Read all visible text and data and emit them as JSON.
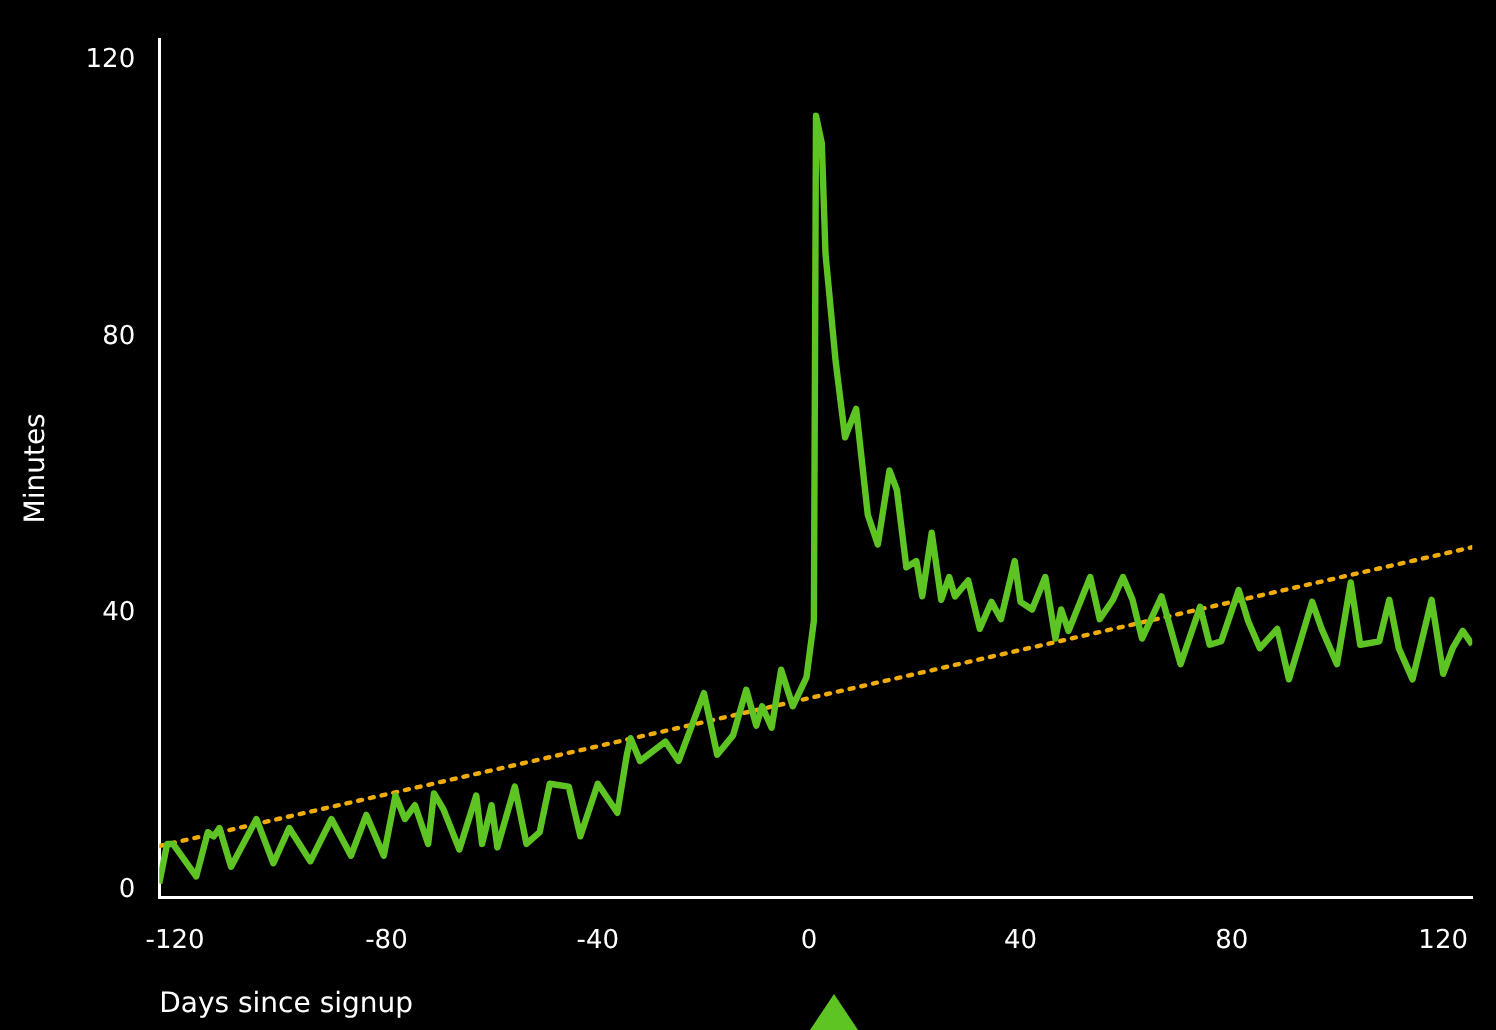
{
  "chart_data": {
    "type": "line",
    "xlabel": "Days since signup",
    "ylabel": "Minutes",
    "xlim": [
      -123,
      125.5
    ],
    "ylim": [
      -1,
      123
    ],
    "xticks": [
      -120,
      -80,
      -40,
      0,
      40,
      80,
      120
    ],
    "yticks": [
      0,
      40,
      80,
      120
    ],
    "grid": false,
    "legend": false,
    "marker": "none",
    "series": [
      {
        "color": "#5ec424",
        "line_style": "solid",
        "x": [
          -123,
          -121.5,
          -120.4,
          -116,
          -113.8,
          -112.7,
          -111.6,
          -109.4,
          -104.6,
          -101.4,
          -98.4,
          -94.4,
          -90.4,
          -86.7,
          -83.8,
          -80.5,
          -78.3,
          -76.5,
          -74.6,
          -72.1,
          -71,
          -69.2,
          -66.2,
          -63,
          -61.9,
          -60.1,
          -59,
          -55.7,
          -53.5,
          -51,
          -49.1,
          -45.5,
          -43.3,
          -40,
          -36.3,
          -34.5,
          -33.8,
          -32,
          -27.2,
          -24.7,
          -19.9,
          -17.4,
          -14.4,
          -11.9,
          -10,
          -8.9,
          -7.1,
          -5.3,
          -3.1,
          -0.5,
          0.9,
          1.1,
          1.3,
          2.4,
          3.1,
          5,
          6.8,
          8.9,
          11.1,
          13,
          15.2,
          16.6,
          18.4,
          20.3,
          21.4,
          23.2,
          25,
          26.5,
          27.6,
          30.1,
          32.3,
          34.5,
          36.3,
          38.9,
          40,
          42.2,
          44.7,
          46.6,
          47.7,
          49.1,
          53.2,
          55,
          57.5,
          59.4,
          61.2,
          63,
          66.7,
          70.3,
          74,
          75.8,
          78,
          81.3,
          83.1,
          85.3,
          88.6,
          90.8,
          95.2,
          97,
          99.9,
          102.5,
          104.3,
          107.9,
          109.8,
          111.6,
          114.2,
          117.8,
          120,
          121.8,
          123.7,
          125.5
        ],
        "values": [
          1,
          6.7,
          6.7,
          2,
          8.4,
          7.8,
          9,
          3.4,
          10.3,
          3.9,
          9,
          4.2,
          10.3,
          5,
          10.9,
          5,
          13.7,
          10.3,
          12.3,
          6.7,
          14,
          11.7,
          5.9,
          13.7,
          6.7,
          12.3,
          6.2,
          15,
          6.7,
          8.4,
          15.4,
          15,
          7.8,
          15.4,
          11.2,
          19.6,
          22,
          18.7,
          21.5,
          18.7,
          28.5,
          19.6,
          22.4,
          29,
          23.8,
          26.6,
          23.5,
          31.9,
          26.6,
          30.8,
          39,
          74.7,
          112,
          108,
          92,
          76.6,
          65.5,
          69.6,
          54.3,
          50,
          60.7,
          57.9,
          46.7,
          47.6,
          42.5,
          51.7,
          42,
          45.3,
          42.5,
          44.8,
          37.8,
          41.7,
          39.2,
          47.6,
          41.7,
          40.6,
          45.3,
          36.4,
          40.6,
          37.5,
          45.3,
          39.2,
          42,
          45.3,
          42,
          36.4,
          42.5,
          32.7,
          41,
          35.5,
          36,
          43.4,
          38.9,
          35,
          37.8,
          30.5,
          41.7,
          37.8,
          32.7,
          44.5,
          35.5,
          36,
          42,
          35,
          30.5,
          42,
          31.3,
          35,
          37.5,
          35.5
        ]
      },
      {
        "color": "#f0ac0a",
        "line_style": "dotted",
        "x": [
          -123,
          125.5
        ],
        "values": [
          6.4,
          49.6
        ]
      }
    ]
  }
}
